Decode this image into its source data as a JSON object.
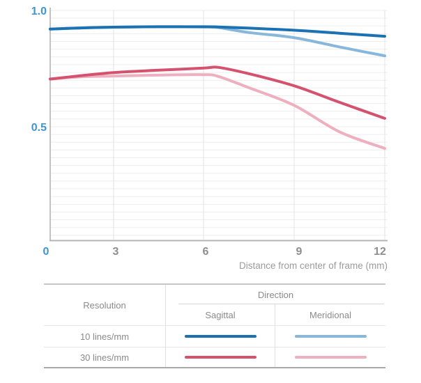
{
  "chart": {
    "y_ticks": [
      {
        "label": "1.0",
        "value": 1.0
      },
      {
        "label": "0.5",
        "value": 0.5
      }
    ],
    "x_ticks": [
      {
        "label": "0",
        "value": 0
      },
      {
        "label": "3",
        "value": 3
      },
      {
        "label": "6",
        "value": 6
      },
      {
        "label": "9",
        "value": 9
      },
      {
        "label": "12",
        "value": 12
      }
    ],
    "xlabel": "Distance from center of frame (mm)"
  },
  "chart_data": {
    "type": "line",
    "title": "",
    "xlabel": "Distance from center of frame (mm)",
    "ylabel": "",
    "xlim": [
      0,
      12
    ],
    "ylim": [
      0,
      1.04
    ],
    "grid": true,
    "legend_position": "bottom-table",
    "x": [
      0,
      1.5,
      3,
      4.5,
      6,
      6.5,
      7.5,
      9,
      10.5,
      12
    ],
    "series": [
      {
        "name": "10 lines/mm Sagittal",
        "color": "#1a72b2",
        "values": [
          0.92,
          0.925,
          0.928,
          0.93,
          0.93,
          0.929,
          0.924,
          0.915,
          0.902,
          0.889
        ]
      },
      {
        "name": "10 lines/mm Meridional",
        "color": "#88b7dc",
        "values": [
          0.92,
          0.925,
          0.928,
          0.93,
          0.929,
          0.926,
          0.905,
          0.883,
          0.843,
          0.805
        ]
      },
      {
        "name": "30 lines/mm Sagittal",
        "color": "#d5526f",
        "values": [
          0.705,
          0.72,
          0.733,
          0.743,
          0.752,
          0.755,
          0.728,
          0.676,
          0.605,
          0.536
        ]
      },
      {
        "name": "30 lines/mm Meridional",
        "color": "#eeafbf",
        "values": [
          0.705,
          0.715,
          0.718,
          0.722,
          0.724,
          0.716,
          0.668,
          0.592,
          0.478,
          0.407
        ]
      }
    ]
  },
  "colors": {
    "tick_blue": "#4095cf",
    "tick_gray": "#8e8e8e",
    "h_gridline": "#ededed",
    "v_gridline": "#e3e3e3",
    "axis_left": "#c2c2c2",
    "axis_bottom": "#b4b4b4"
  },
  "legend_table": {
    "resolution_header": "Resolution",
    "direction_header": "Direction",
    "sagittal_header": "Sagittal",
    "meridional_header": "Meridional",
    "rows": [
      {
        "resolution": "10 lines/mm",
        "sagittal_color": "#1a72b2",
        "meridional_color": "#88b7dc"
      },
      {
        "resolution": "30 lines/mm",
        "sagittal_color": "#d5526f",
        "meridional_color": "#eeafbf"
      }
    ]
  }
}
